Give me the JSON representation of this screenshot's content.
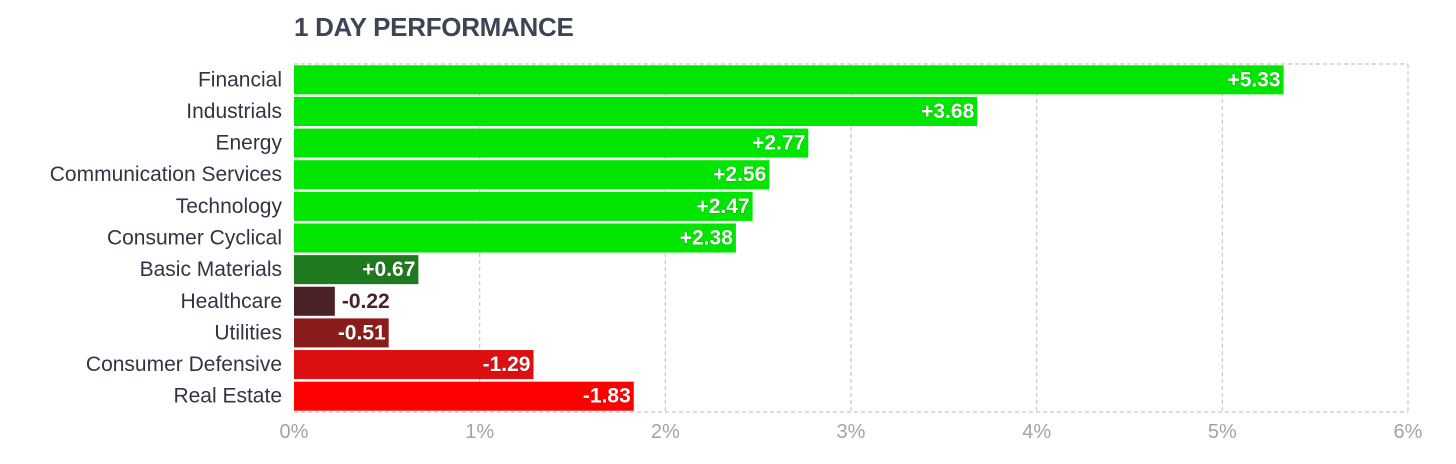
{
  "chart_data": {
    "type": "bar",
    "orientation": "horizontal",
    "title": "1 DAY PERFORMANCE",
    "categories": [
      "Financial",
      "Industrials",
      "Energy",
      "Communication Services",
      "Technology",
      "Consumer Cyclical",
      "Basic Materials",
      "Healthcare",
      "Utilities",
      "Consumer Defensive",
      "Real Estate"
    ],
    "values": [
      5.33,
      3.68,
      2.77,
      2.56,
      2.47,
      2.38,
      0.67,
      -0.22,
      -0.51,
      -1.29,
      -1.83
    ],
    "value_labels": [
      "+5.33",
      "+3.68",
      "+2.77",
      "+2.56",
      "+2.47",
      "+2.38",
      "+0.67",
      "-0.22",
      "-0.51",
      "-1.29",
      "-1.83"
    ],
    "bar_colors": [
      "#00e600",
      "#00e600",
      "#00e600",
      "#00e600",
      "#00e600",
      "#00e600",
      "#1f7a1f",
      "#4a2226",
      "#8b1c1c",
      "#dc1010",
      "#ff0000"
    ],
    "xlim": [
      0,
      6
    ],
    "x_ticks": [
      0,
      1,
      2,
      3,
      4,
      5,
      6
    ],
    "x_tick_labels": [
      "0%",
      "1%",
      "2%",
      "3%",
      "4%",
      "5%",
      "6%"
    ],
    "bar_length": "absolute value",
    "grid": true,
    "grid_style": "dashed",
    "grid_color": "#c8c8c8",
    "legend": "none"
  }
}
